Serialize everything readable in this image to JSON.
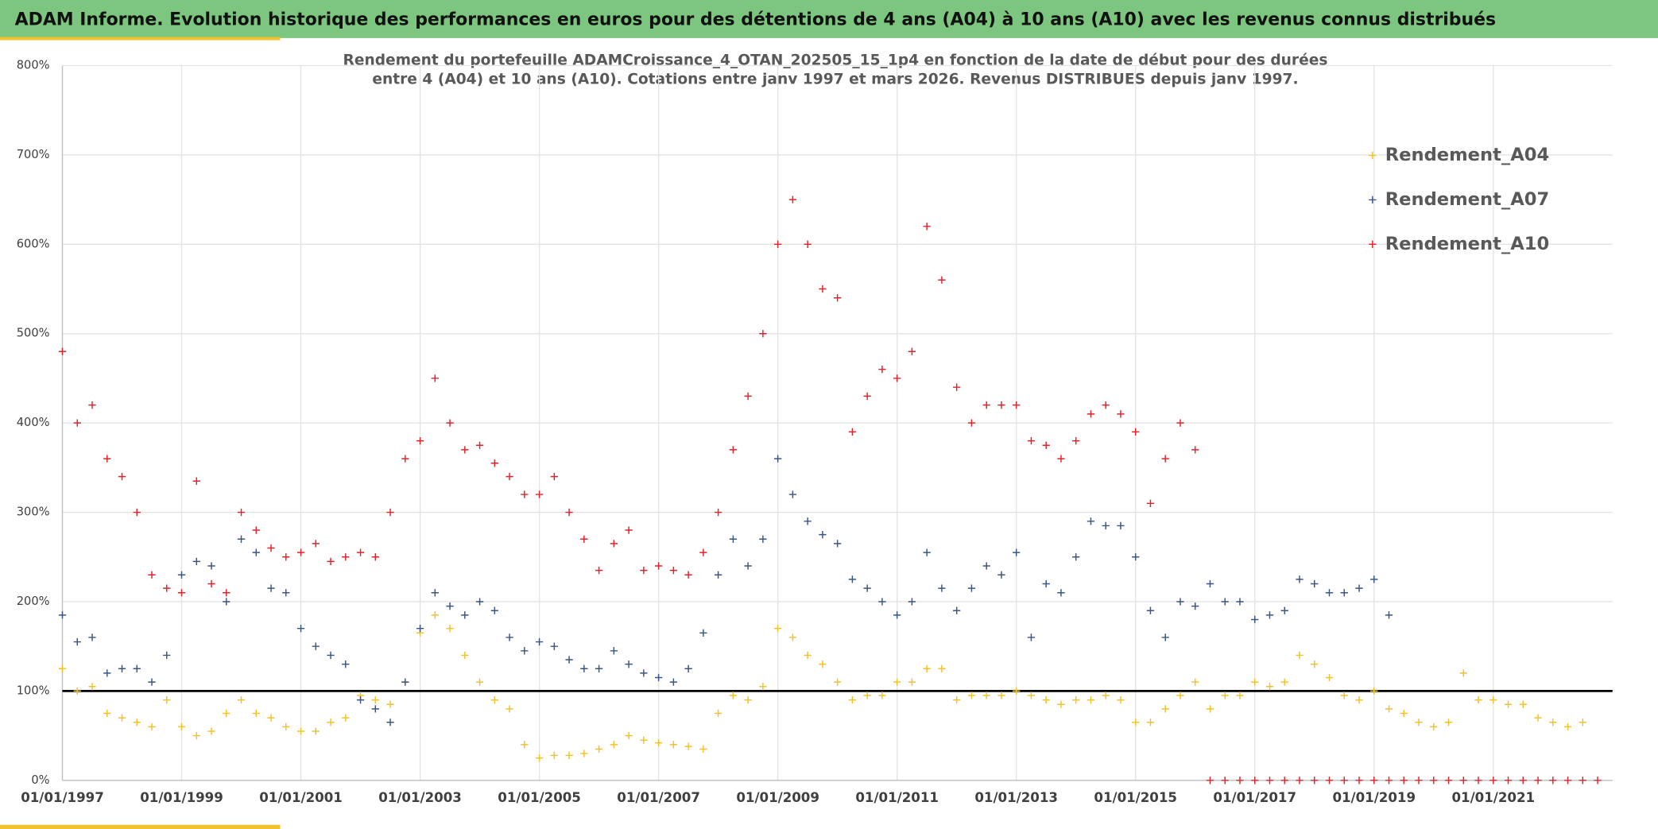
{
  "chart_data": {
    "type": "scatter",
    "title": "ADAM Informe. Evolution historique des performances en euros pour des détentions de 4 ans (A04) à 10 ans (A10) avec les revenus connus distribués",
    "subtitle": [
      "Rendement du portefeuille ADAMCroissance_4_OTAN_202505_15_1p4  en fonction de la date de début pour des durées",
      "entre 4 (A04) et 10 ans (A10). Cotations entre janv 1997 et mars 2026. Revenus DISTRIBUES depuis janv 1997."
    ],
    "x": [
      "01/01/1997",
      "01/04/1997",
      "01/07/1997",
      "01/10/1997",
      "01/01/1998",
      "01/04/1998",
      "01/07/1998",
      "01/10/1998",
      "01/01/1999",
      "01/04/1999",
      "01/07/1999",
      "01/10/1999",
      "01/01/2000",
      "01/04/2000",
      "01/07/2000",
      "01/10/2000",
      "01/01/2001",
      "01/04/2001",
      "01/07/2001",
      "01/10/2001",
      "01/01/2002",
      "01/04/2002",
      "01/07/2002",
      "01/10/2002",
      "01/01/2003",
      "01/04/2003",
      "01/07/2003",
      "01/10/2003",
      "01/01/2004",
      "01/04/2004",
      "01/07/2004",
      "01/10/2004",
      "01/01/2005",
      "01/04/2005",
      "01/07/2005",
      "01/10/2005",
      "01/01/2006",
      "01/04/2006",
      "01/07/2006",
      "01/10/2006",
      "01/01/2007",
      "01/04/2007",
      "01/07/2007",
      "01/10/2007",
      "01/01/2008",
      "01/04/2008",
      "01/07/2008",
      "01/10/2008",
      "01/01/2009",
      "01/04/2009",
      "01/07/2009",
      "01/10/2009",
      "01/01/2010",
      "01/04/2010",
      "01/07/2010",
      "01/10/2010",
      "01/01/2011",
      "01/04/2011",
      "01/07/2011",
      "01/10/2011",
      "01/01/2012",
      "01/04/2012",
      "01/07/2012",
      "01/10/2012",
      "01/01/2013",
      "01/04/2013",
      "01/07/2013",
      "01/10/2013",
      "01/01/2014",
      "01/04/2014",
      "01/07/2014",
      "01/10/2014",
      "01/01/2015",
      "01/04/2015",
      "01/07/2015",
      "01/10/2015",
      "01/01/2016",
      "01/04/2016",
      "01/07/2016",
      "01/10/2016",
      "01/01/2017",
      "01/04/2017",
      "01/07/2017",
      "01/10/2017",
      "01/01/2018",
      "01/04/2018",
      "01/07/2018",
      "01/10/2018",
      "01/01/2019",
      "01/04/2019",
      "01/07/2019",
      "01/10/2019",
      "01/01/2020",
      "01/04/2020",
      "01/07/2020",
      "01/10/2020",
      "01/01/2021",
      "01/04/2021",
      "01/07/2021",
      "01/10/2021",
      "01/01/2022",
      "01/04/2022",
      "01/07/2022",
      "01/10/2022"
    ],
    "series": [
      {
        "name": "Rendement_A04",
        "color": "#f2c12e",
        "values": [
          125,
          100,
          105,
          75,
          70,
          65,
          60,
          90,
          60,
          50,
          55,
          75,
          90,
          75,
          70,
          60,
          55,
          55,
          65,
          70,
          95,
          90,
          85,
          110,
          165,
          185,
          170,
          140,
          110,
          90,
          80,
          40,
          25,
          28,
          28,
          30,
          35,
          40,
          50,
          45,
          42,
          40,
          38,
          35,
          75,
          95,
          90,
          105,
          170,
          160,
          140,
          130,
          110,
          90,
          95,
          95,
          110,
          110,
          125,
          125,
          90,
          95,
          95,
          95,
          100,
          95,
          90,
          85,
          90,
          90,
          95,
          90,
          65,
          65,
          80,
          95,
          110,
          80,
          95,
          95,
          110,
          105,
          110,
          140,
          130,
          115,
          95,
          90,
          100,
          80,
          75,
          65,
          60,
          65,
          120,
          90,
          90,
          85,
          85,
          70,
          65,
          60,
          65,
          null
        ]
      },
      {
        "name": "Rendement_A07",
        "color": "#3b5584",
        "values": [
          185,
          155,
          160,
          120,
          125,
          125,
          110,
          140,
          230,
          245,
          240,
          200,
          270,
          255,
          215,
          210,
          170,
          150,
          140,
          130,
          90,
          80,
          65,
          110,
          170,
          210,
          195,
          185,
          200,
          190,
          160,
          145,
          155,
          150,
          135,
          125,
          125,
          145,
          130,
          120,
          115,
          110,
          125,
          165,
          230,
          270,
          240,
          270,
          360,
          320,
          290,
          275,
          265,
          225,
          215,
          200,
          185,
          200,
          255,
          215,
          190,
          215,
          240,
          230,
          255,
          160,
          220,
          210,
          250,
          290,
          285,
          285,
          250,
          190,
          160,
          200,
          195,
          220,
          200,
          200,
          180,
          185,
          190,
          225,
          220,
          210,
          210,
          215,
          225,
          185,
          null,
          null,
          null,
          null,
          null,
          null,
          null,
          null,
          null,
          null,
          null,
          null,
          null,
          null
        ]
      },
      {
        "name": "Rendement_A10",
        "color": "#e0242b",
        "values": [
          480,
          400,
          420,
          360,
          340,
          300,
          230,
          215,
          210,
          335,
          220,
          210,
          300,
          280,
          260,
          250,
          255,
          265,
          245,
          250,
          255,
          250,
          300,
          360,
          380,
          450,
          400,
          370,
          375,
          355,
          340,
          320,
          320,
          340,
          300,
          270,
          235,
          265,
          280,
          235,
          240,
          235,
          230,
          255,
          300,
          370,
          430,
          500,
          600,
          650,
          600,
          550,
          540,
          390,
          430,
          460,
          450,
          480,
          620,
          560,
          440,
          400,
          420,
          420,
          420,
          380,
          375,
          360,
          380,
          410,
          420,
          410,
          390,
          310,
          360,
          400,
          370,
          0,
          0,
          0,
          0,
          0,
          0,
          0,
          0,
          0,
          0,
          0,
          0,
          0,
          0,
          0,
          0,
          0,
          0,
          0,
          0,
          0,
          0,
          0,
          0,
          0,
          0,
          0
        ]
      }
    ],
    "xlim": [
      "01/01/1997",
      "01/01/2023"
    ],
    "xticks": [
      "01/01/1997",
      "01/01/1999",
      "01/01/2001",
      "01/01/2003",
      "01/01/2005",
      "01/01/2007",
      "01/01/2009",
      "01/01/2011",
      "01/01/2013",
      "01/01/2015",
      "01/01/2017",
      "01/01/2019",
      "01/01/2021"
    ],
    "ylim": [
      0,
      800
    ],
    "yticks": [
      {
        "value": 0,
        "label": "0%"
      },
      {
        "value": 100,
        "label": "100%"
      },
      {
        "value": 200,
        "label": "200%"
      },
      {
        "value": 300,
        "label": "300%"
      },
      {
        "value": 400,
        "label": "400%"
      },
      {
        "value": 500,
        "label": "500%"
      },
      {
        "value": 600,
        "label": "600%"
      },
      {
        "value": 700,
        "label": "700%"
      },
      {
        "value": 800,
        "label": "800%"
      }
    ],
    "reference_line": 100,
    "grid": true,
    "legend": "upper right"
  }
}
